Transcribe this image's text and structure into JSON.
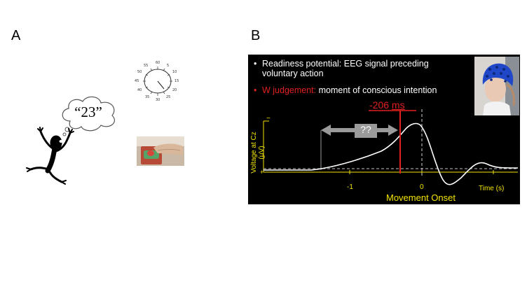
{
  "panel_a": {
    "letter": "A",
    "thought_text": "“23”",
    "clock_numbers": [
      "60",
      "5",
      "10",
      "15",
      "20",
      "25",
      "30",
      "35",
      "40",
      "45",
      "50",
      "55"
    ]
  },
  "panel_b": {
    "letter": "B",
    "bullet_1": "Readiness potential: EEG signal preceding voluntary action",
    "bullet_2_label": "W judgement:",
    "bullet_2_text": " moment of conscious intention",
    "w_time_value": "-206",
    "w_time_unit": "ms",
    "unknown_interval": "??",
    "y_axis_label": "Voltage at Cz (μV)",
    "y_tick_top": "−",
    "y_tick_bottom": "+",
    "x_tick_neg1": "-1",
    "x_tick_0": "0",
    "x_axis_label": "Time (s)",
    "onset_label": "Movement Onset",
    "colors": {
      "background": "#000000",
      "text": "#ffffff",
      "highlight": "#e02020",
      "axis": "#f2e400",
      "arrow": "#9a9a9a"
    }
  }
}
